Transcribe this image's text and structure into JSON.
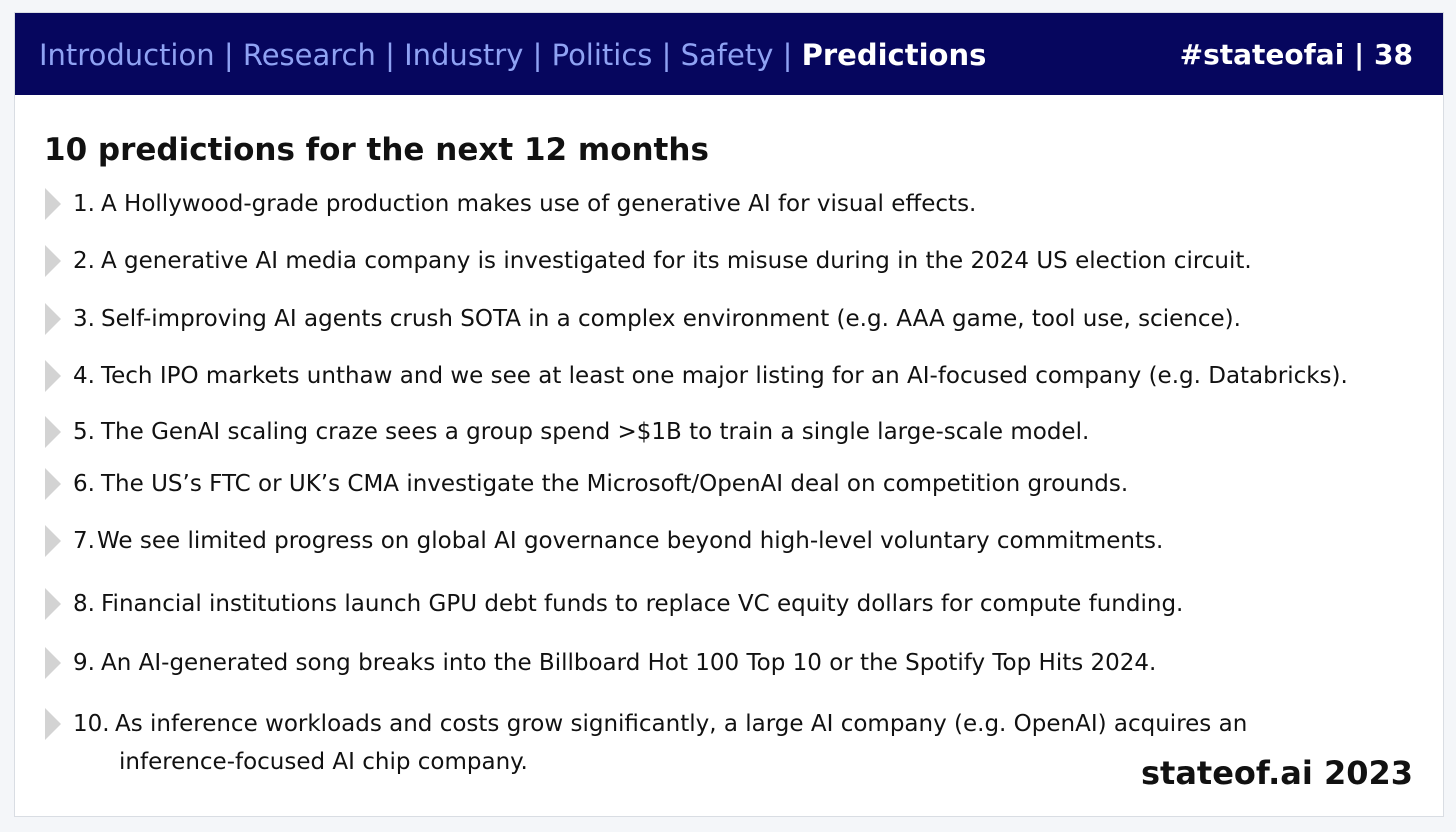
{
  "header": {
    "nav": [
      {
        "label": "Introduction",
        "active": false
      },
      {
        "label": "Research",
        "active": false
      },
      {
        "label": "Industry",
        "active": false
      },
      {
        "label": "Politics",
        "active": false
      },
      {
        "label": "Safety",
        "active": false
      },
      {
        "label": "Predictions",
        "active": true
      }
    ],
    "separator": "|",
    "hashtag_page": "#stateofai | 38"
  },
  "title": "10 predictions for the next 12 months",
  "predictions": [
    {
      "num": "1.",
      "text": "A Hollywood-grade production makes use of generative AI for visual effects."
    },
    {
      "num": "2.",
      "text": "A generative AI media company is investigated for its misuse during in the 2024 US election circuit."
    },
    {
      "num": "3.",
      "text": "Self-improving AI agents crush SOTA in a complex environment (e.g. AAA game, tool use, science)."
    },
    {
      "num": "4.",
      "text": "Tech IPO markets unthaw and we see at least one major listing for an AI-focused company (e.g. Databricks)."
    },
    {
      "num": "5.",
      "text": "The GenAI scaling craze sees a group spend >$1B to train a single large-scale model."
    },
    {
      "num": "6.",
      "text": "The US’s FTC or UK’s CMA investigate the Microsoft/OpenAI deal on competition grounds."
    },
    {
      "num": "7.",
      "text": "We see limited progress on global AI governance beyond high-level voluntary commitments."
    },
    {
      "num": "8.",
      "text": "Financial institutions launch GPU debt funds to replace VC equity dollars for compute funding."
    },
    {
      "num": "9.",
      "text": "An AI-generated song breaks into the Billboard Hot 100 Top 10 or the Spotify Top Hits 2024."
    },
    {
      "num": "10.",
      "text": "As inference workloads and costs grow significantly, a large AI company (e.g. OpenAI) acquires an",
      "text_line2": "inference-focused AI chip company."
    }
  ],
  "brand": "stateof.ai 2023"
}
